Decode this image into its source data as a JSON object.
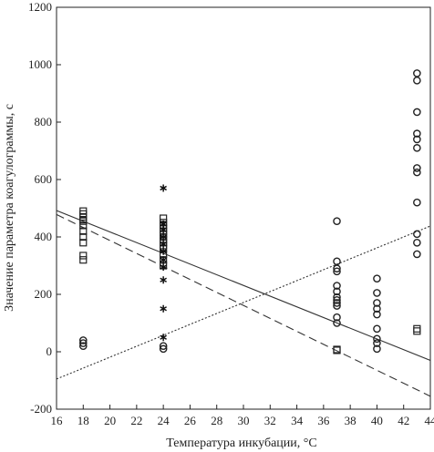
{
  "chart_data": {
    "type": "scatter",
    "title": "",
    "xlabel": "Температура инкубации, °С",
    "ylabel": "Значение параметра коагулограммы, с",
    "xlim": [
      16,
      44
    ],
    "ylim": [
      -200,
      1200
    ],
    "xticks": [
      16,
      18,
      20,
      22,
      24,
      26,
      28,
      30,
      32,
      34,
      36,
      38,
      40,
      42,
      44
    ],
    "yticks": [
      -200,
      0,
      200,
      400,
      600,
      800,
      1000,
      1200
    ],
    "grid": false,
    "legend": "none",
    "series": [
      {
        "marker": "square",
        "points": [
          [
            18,
            490
          ],
          [
            18,
            480
          ],
          [
            18,
            470
          ],
          [
            18,
            460
          ],
          [
            18,
            455
          ],
          [
            18,
            440
          ],
          [
            18,
            420
          ],
          [
            18,
            400
          ],
          [
            18,
            380
          ],
          [
            18,
            335
          ],
          [
            18,
            320
          ],
          [
            24,
            465
          ],
          [
            24,
            450
          ],
          [
            24,
            440
          ],
          [
            24,
            430
          ],
          [
            24,
            420
          ],
          [
            24,
            410
          ],
          [
            24,
            400
          ],
          [
            24,
            390
          ],
          [
            24,
            380
          ],
          [
            24,
            370
          ],
          [
            24,
            360
          ],
          [
            24,
            340
          ],
          [
            24,
            320
          ],
          [
            24,
            300
          ],
          [
            37,
            5
          ],
          [
            37,
            8
          ],
          [
            43,
            80
          ],
          [
            43,
            72
          ]
        ]
      },
      {
        "marker": "circle",
        "points": [
          [
            18,
            40
          ],
          [
            18,
            30
          ],
          [
            18,
            20
          ],
          [
            24,
            20
          ],
          [
            24,
            10
          ],
          [
            37,
            455
          ],
          [
            37,
            315
          ],
          [
            37,
            290
          ],
          [
            37,
            280
          ],
          [
            37,
            230
          ],
          [
            37,
            210
          ],
          [
            37,
            190
          ],
          [
            37,
            180
          ],
          [
            37,
            170
          ],
          [
            37,
            160
          ],
          [
            37,
            120
          ],
          [
            37,
            100
          ],
          [
            40,
            255
          ],
          [
            40,
            205
          ],
          [
            40,
            170
          ],
          [
            40,
            150
          ],
          [
            40,
            130
          ],
          [
            40,
            80
          ],
          [
            40,
            45
          ],
          [
            40,
            30
          ],
          [
            40,
            10
          ],
          [
            43,
            970
          ],
          [
            43,
            945
          ],
          [
            43,
            835
          ],
          [
            43,
            760
          ],
          [
            43,
            740
          ],
          [
            43,
            710
          ],
          [
            43,
            640
          ],
          [
            43,
            625
          ],
          [
            43,
            520
          ],
          [
            43,
            410
          ],
          [
            43,
            380
          ],
          [
            43,
            340
          ]
        ]
      },
      {
        "marker": "asterisk",
        "points": [
          [
            24,
            570
          ],
          [
            24,
            445
          ],
          [
            24,
            425
          ],
          [
            24,
            400
          ],
          [
            24,
            375
          ],
          [
            24,
            350
          ],
          [
            24,
            320
          ],
          [
            24,
            295
          ],
          [
            24,
            250
          ],
          [
            24,
            150
          ],
          [
            24,
            50
          ]
        ]
      }
    ],
    "trend_lines": [
      {
        "style": "solid",
        "from": [
          16,
          492
        ],
        "to": [
          44,
          -30
        ]
      },
      {
        "style": "dashed",
        "from": [
          16,
          478
        ],
        "to": [
          44,
          -155
        ]
      },
      {
        "style": "dotted",
        "from": [
          16,
          -95
        ],
        "to": [
          44,
          438
        ]
      }
    ]
  }
}
